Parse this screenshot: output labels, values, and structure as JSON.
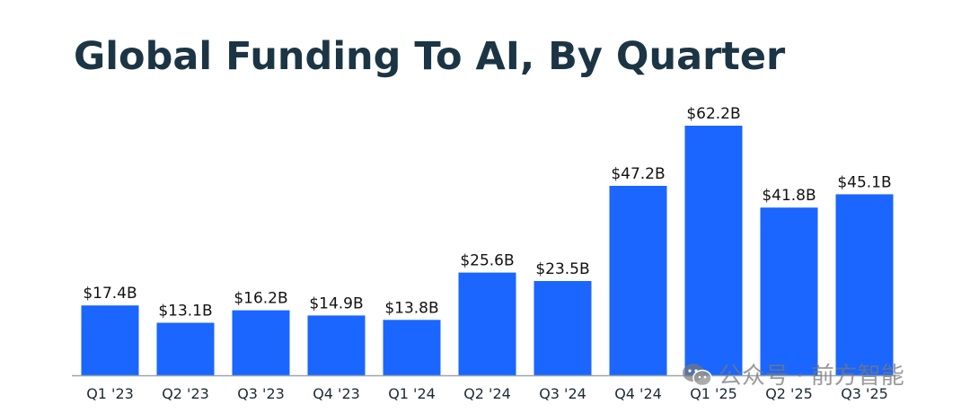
{
  "chart_data": {
    "type": "bar",
    "title": "Global Funding To AI, By Quarter",
    "xlabel": "",
    "ylabel": "",
    "categories": [
      "Q1 '23",
      "Q2 '23",
      "Q3 '23",
      "Q4 '23",
      "Q1 '24",
      "Q2 '24",
      "Q3 '24",
      "Q4 '24",
      "Q1 '25",
      "Q2 '25",
      "Q3 '25"
    ],
    "values": [
      17.4,
      13.1,
      16.2,
      14.9,
      13.8,
      25.6,
      23.5,
      47.2,
      62.2,
      41.8,
      45.1
    ],
    "data_labels": [
      "$17.4B",
      "$13.1B",
      "$16.2B",
      "$14.9B",
      "$13.8B",
      "$25.6B",
      "$23.5B",
      "$47.2B",
      "$62.2B",
      "$41.8B",
      "$45.1B"
    ],
    "unit": "$B",
    "ylim": [
      0,
      62.2
    ],
    "grid": false,
    "legend": "none",
    "bar_color": "#1a66ff",
    "axis_color": "#9aa6ad",
    "label_color": "#1b2a33"
  },
  "watermark": {
    "icon": "wechat-icon",
    "text": "公众号 · 前方智能"
  }
}
